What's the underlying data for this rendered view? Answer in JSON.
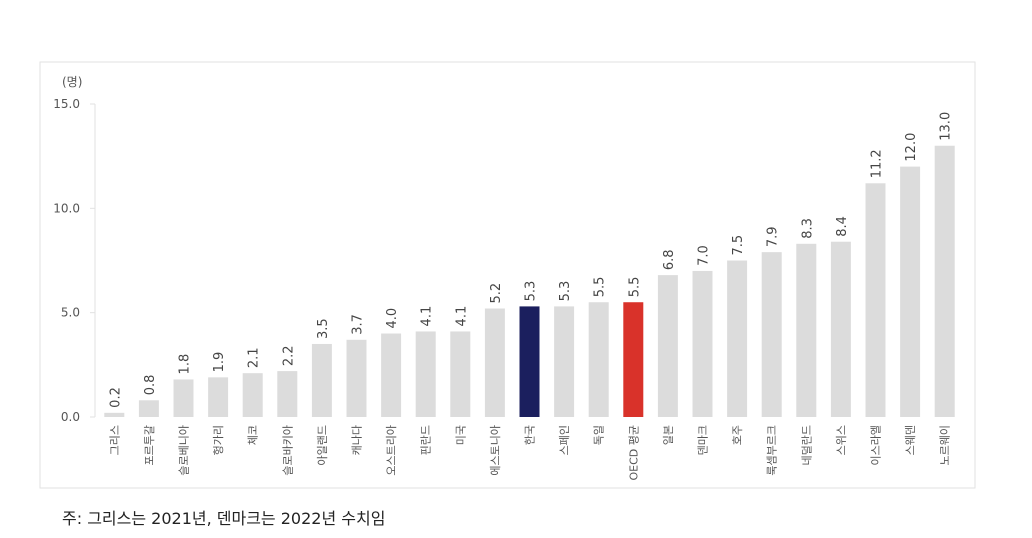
{
  "chart_data": {
    "type": "bar",
    "y_label": "(명)",
    "note": "주: 그리스는 2021년, 덴마크는 2022년 수치임",
    "categories": [
      "그리스",
      "포르투갈",
      "슬로베니아",
      "헝가리",
      "체코",
      "슬로바키아",
      "아일랜드",
      "캐나다",
      "오스트리아",
      "핀란드",
      "미국",
      "에스토니아",
      "한국",
      "스페인",
      "독일",
      "OECD 평균",
      "일본",
      "덴마크",
      "호주",
      "룩셈부르크",
      "네덜란드",
      "스위스",
      "이스라엘",
      "스웨덴",
      "노르웨이"
    ],
    "values": [
      0.2,
      0.8,
      1.8,
      1.9,
      2.1,
      2.2,
      3.5,
      3.7,
      4.0,
      4.1,
      4.1,
      5.2,
      5.3,
      5.3,
      5.5,
      5.5,
      6.8,
      7.0,
      7.5,
      7.9,
      8.3,
      8.4,
      11.2,
      12.0,
      13.0
    ],
    "value_labels": [
      "0.2",
      "0.8",
      "1.8",
      "1.9",
      "2.1",
      "2.2",
      "3.5",
      "3.7",
      "4.0",
      "4.1",
      "4.1",
      "5.2",
      "5.3",
      "5.3",
      "5.5",
      "5.5",
      "6.8",
      "7.0",
      "7.5",
      "7.9",
      "8.3",
      "8.4",
      "11.2",
      "12.0",
      "13.0"
    ],
    "colors": [
      "#dcdcdc",
      "#dcdcdc",
      "#dcdcdc",
      "#dcdcdc",
      "#dcdcdc",
      "#dcdcdc",
      "#dcdcdc",
      "#dcdcdc",
      "#dcdcdc",
      "#dcdcdc",
      "#dcdcdc",
      "#dcdcdc",
      "#1b1f5e",
      "#dcdcdc",
      "#dcdcdc",
      "#d9322a",
      "#dcdcdc",
      "#dcdcdc",
      "#dcdcdc",
      "#dcdcdc",
      "#dcdcdc",
      "#dcdcdc",
      "#dcdcdc",
      "#dcdcdc",
      "#dcdcdc"
    ],
    "ylim": [
      0,
      15
    ],
    "yticks": [
      {
        "value": 0,
        "label": "0.0"
      },
      {
        "value": 5,
        "label": "5.0"
      },
      {
        "value": 10,
        "label": "10.0"
      },
      {
        "value": 15,
        "label": "15.0"
      }
    ]
  }
}
